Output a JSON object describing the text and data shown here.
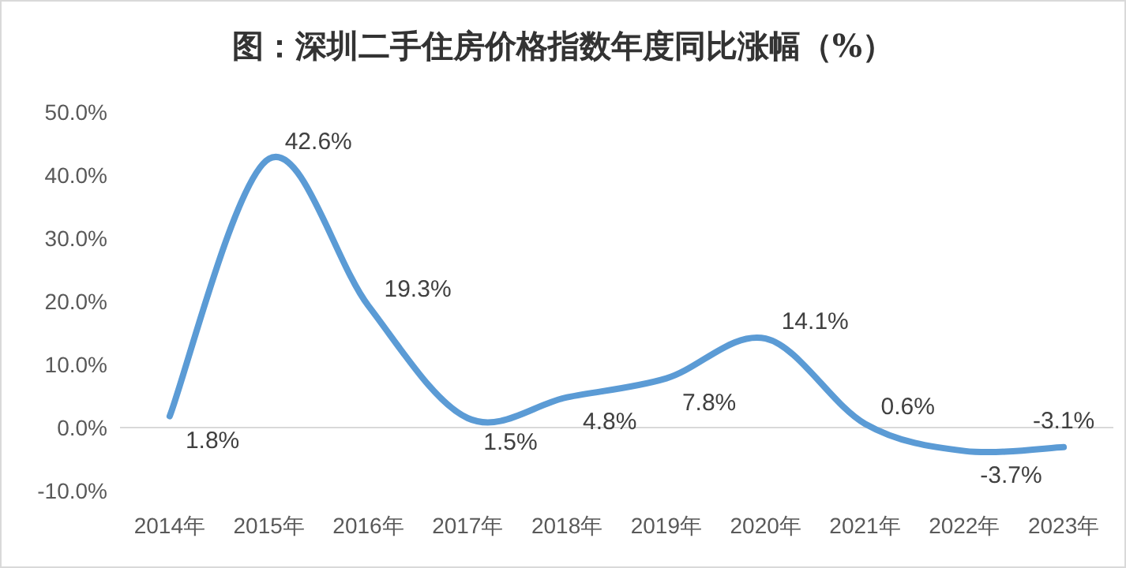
{
  "chart_data": {
    "type": "line",
    "title": "图：深圳二手住房价格指数年度同比涨幅（%）",
    "categories": [
      "2014年",
      "2015年",
      "2016年",
      "2017年",
      "2018年",
      "2019年",
      "2020年",
      "2021年",
      "2022年",
      "2023年"
    ],
    "series": [
      {
        "color": "#5b9bd5",
        "values": [
          1.8,
          42.6,
          19.3,
          1.5,
          4.8,
          7.8,
          14.1,
          0.6,
          -3.7,
          -3.1
        ],
        "value_labels": [
          "1.8%",
          "42.6%",
          "19.3%",
          "1.5%",
          "4.8%",
          "7.8%",
          "14.1%",
          "0.6%",
          "-3.7%",
          "-3.1%"
        ]
      }
    ],
    "ylim": [
      -10,
      50
    ],
    "yticks": [
      {
        "value": -10,
        "label": "-10.0%"
      },
      {
        "value": 0,
        "label": "0.0%"
      },
      {
        "value": 10,
        "label": "10.0%"
      },
      {
        "value": 20,
        "label": "20.0%"
      },
      {
        "value": 30,
        "label": "30.0%"
      },
      {
        "value": 40,
        "label": "40.0%"
      },
      {
        "value": 50,
        "label": "50.0%"
      }
    ],
    "line_style": "solid"
  }
}
